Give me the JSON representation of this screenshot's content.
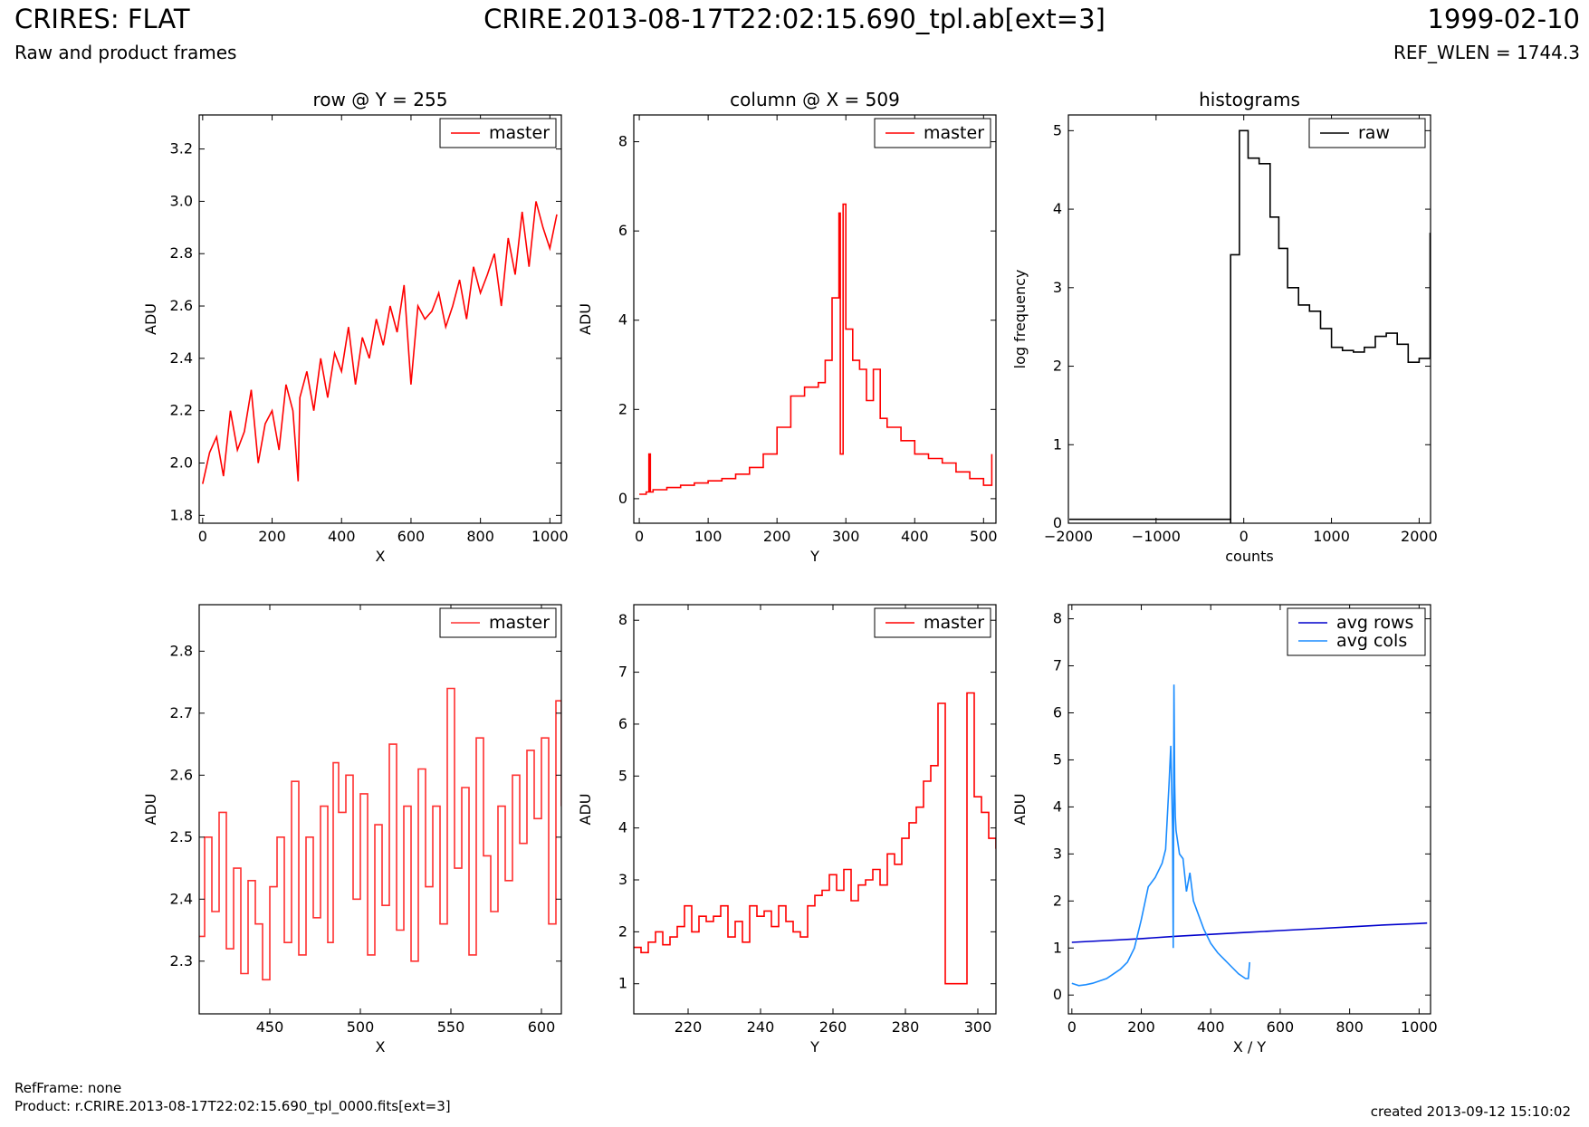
{
  "header": {
    "title": "CRIRES: FLAT",
    "subtitle": "Raw and product frames",
    "file": "CRIRE.2013-08-17T22:02:15.690_tpl.ab[ext=3]",
    "date": "1999-02-10",
    "ref_wlen": "REF_WLEN = 1744.3"
  },
  "footer": {
    "ref_frame": "RefFrame: none",
    "product": "Product: r.CRIRE.2013-08-17T22:02:15.690_tpl_0000.fits[ext=3]",
    "created": "created 2013-09-12 15:10:02"
  },
  "chart_data": [
    {
      "id": "row-full",
      "type": "line",
      "title": "row @ Y = 255",
      "xlabel": "X",
      "ylabel": "ADU",
      "xlim": [
        -10,
        1033
      ],
      "ylim": [
        1.77,
        3.33
      ],
      "xticks": [
        0,
        200,
        400,
        600,
        800,
        1000
      ],
      "yticks": [
        1.8,
        2.0,
        2.2,
        2.4,
        2.6,
        2.8,
        3.0,
        3.2
      ],
      "ytick_decimals": 1,
      "grid": false,
      "legend": "top-right",
      "series": [
        {
          "name": "master",
          "color": "#ff0000",
          "step": false,
          "x": [
            0,
            20,
            40,
            60,
            80,
            100,
            120,
            140,
            160,
            180,
            200,
            220,
            240,
            260,
            275,
            280,
            300,
            320,
            340,
            360,
            380,
            400,
            420,
            440,
            460,
            480,
            500,
            520,
            540,
            560,
            580,
            600,
            620,
            640,
            660,
            680,
            700,
            720,
            740,
            760,
            780,
            800,
            820,
            840,
            860,
            880,
            900,
            920,
            940,
            960,
            980,
            1000,
            1020
          ],
          "y": [
            1.92,
            2.04,
            2.1,
            1.95,
            2.2,
            2.05,
            2.12,
            2.28,
            2.0,
            2.15,
            2.2,
            2.05,
            2.3,
            2.2,
            1.93,
            2.25,
            2.35,
            2.2,
            2.4,
            2.25,
            2.42,
            2.35,
            2.52,
            2.3,
            2.48,
            2.4,
            2.55,
            2.45,
            2.6,
            2.5,
            2.68,
            2.3,
            2.6,
            2.55,
            2.58,
            2.65,
            2.52,
            2.6,
            2.7,
            2.55,
            2.75,
            2.65,
            2.72,
            2.8,
            2.6,
            2.86,
            2.72,
            2.96,
            2.75,
            3.0,
            2.9,
            2.82,
            2.95
          ]
        }
      ]
    },
    {
      "id": "col-full",
      "type": "line",
      "title": "column @ X = 509",
      "xlabel": "Y",
      "ylabel": "ADU",
      "xlim": [
        -8,
        518
      ],
      "ylim": [
        -0.55,
        8.6
      ],
      "xticks": [
        0,
        100,
        200,
        300,
        400,
        500
      ],
      "yticks": [
        0,
        2,
        4,
        6,
        8
      ],
      "ytick_decimals": 0,
      "grid": false,
      "legend": "top-right",
      "series": [
        {
          "name": "master",
          "color": "#ff0000",
          "step": true,
          "x": [
            0,
            10,
            14,
            16,
            20,
            40,
            60,
            80,
            100,
            120,
            140,
            160,
            180,
            200,
            220,
            240,
            260,
            270,
            280,
            290,
            292,
            296,
            300,
            310,
            320,
            330,
            340,
            350,
            360,
            380,
            400,
            420,
            440,
            460,
            480,
            500,
            508,
            512
          ],
          "y": [
            0.1,
            0.15,
            1.0,
            0.15,
            0.2,
            0.25,
            0.3,
            0.35,
            0.4,
            0.45,
            0.55,
            0.7,
            1.0,
            1.6,
            2.3,
            2.5,
            2.6,
            3.1,
            4.5,
            6.4,
            1.0,
            6.6,
            3.8,
            3.1,
            2.9,
            2.2,
            2.9,
            1.8,
            1.6,
            1.3,
            1.0,
            0.9,
            0.8,
            0.6,
            0.45,
            0.3,
            0.3,
            1.0
          ]
        }
      ]
    },
    {
      "id": "hist",
      "type": "line",
      "title": "histograms",
      "xlabel": "counts",
      "ylabel": "log frequency",
      "xlim": [
        -2000,
        2130
      ],
      "ylim": [
        0,
        5.2
      ],
      "xticks": [
        -2000,
        -1000,
        0,
        1000,
        2000
      ],
      "yticks": [
        0,
        1,
        2,
        3,
        4,
        5
      ],
      "ytick_decimals": 0,
      "grid": false,
      "legend": "top-right",
      "series": [
        {
          "name": "raw",
          "color": "#000000",
          "step": true,
          "x": [
            -1990,
            -150,
            -150,
            -50,
            50,
            175,
            300,
            400,
            500,
            625,
            750,
            875,
            1000,
            1125,
            1250,
            1375,
            1500,
            1625,
            1750,
            1875,
            2000,
            2125
          ],
          "y": [
            0.05,
            0,
            3.42,
            5.0,
            4.65,
            4.58,
            3.9,
            3.5,
            3.0,
            2.78,
            2.7,
            2.48,
            2.24,
            2.2,
            2.18,
            2.24,
            2.38,
            2.42,
            2.28,
            2.05,
            2.1,
            3.7
          ]
        }
      ]
    },
    {
      "id": "row-zoom",
      "type": "line",
      "title": "",
      "xlabel": "X",
      "ylabel": "ADU",
      "xlim": [
        411,
        611
      ],
      "ylim": [
        2.215,
        2.875
      ],
      "xticks": [
        450,
        500,
        550,
        600
      ],
      "yticks": [
        2.3,
        2.4,
        2.5,
        2.6,
        2.7,
        2.8
      ],
      "ytick_decimals": 1,
      "grid": false,
      "legend": "top-right",
      "series": [
        {
          "name": "master",
          "color": "#ff3030",
          "step": true,
          "x": [
            411,
            414,
            418,
            422,
            426,
            430,
            434,
            438,
            442,
            446,
            450,
            454,
            458,
            462,
            466,
            470,
            474,
            478,
            482,
            485,
            488,
            492,
            496,
            500,
            504,
            508,
            512,
            516,
            520,
            524,
            528,
            532,
            536,
            540,
            544,
            548,
            552,
            556,
            560,
            564,
            568,
            572,
            576,
            580,
            584,
            588,
            592,
            596,
            600,
            604,
            608,
            611
          ],
          "y": [
            2.34,
            2.5,
            2.38,
            2.54,
            2.32,
            2.45,
            2.28,
            2.43,
            2.36,
            2.27,
            2.42,
            2.5,
            2.33,
            2.59,
            2.31,
            2.5,
            2.37,
            2.55,
            2.33,
            2.62,
            2.54,
            2.6,
            2.4,
            2.57,
            2.31,
            2.52,
            2.39,
            2.65,
            2.35,
            2.55,
            2.3,
            2.61,
            2.42,
            2.55,
            2.36,
            2.74,
            2.45,
            2.58,
            2.31,
            2.66,
            2.47,
            2.38,
            2.55,
            2.43,
            2.6,
            2.49,
            2.64,
            2.53,
            2.66,
            2.36,
            2.72,
            2.55
          ]
        }
      ]
    },
    {
      "id": "col-zoom",
      "type": "line",
      "title": "",
      "xlabel": "Y",
      "ylabel": "ADU",
      "xlim": [
        205,
        305
      ],
      "ylim": [
        0.42,
        8.3
      ],
      "xticks": [
        220,
        240,
        260,
        280,
        300
      ],
      "yticks": [
        1,
        2,
        3,
        4,
        5,
        6,
        7,
        8
      ],
      "ytick_decimals": 0,
      "grid": false,
      "legend": "top-right",
      "series": [
        {
          "name": "master",
          "color": "#ff0000",
          "step": true,
          "x": [
            205,
            207,
            209,
            211,
            213,
            215,
            217,
            219,
            221,
            223,
            225,
            227,
            229,
            231,
            233,
            235,
            237,
            239,
            241,
            243,
            245,
            247,
            249,
            251,
            253,
            255,
            257,
            259,
            261,
            263,
            265,
            267,
            269,
            271,
            273,
            275,
            277,
            279,
            281,
            283,
            285,
            287,
            289,
            290,
            291,
            296,
            297,
            299,
            301,
            303,
            305
          ],
          "y": [
            1.7,
            1.6,
            1.8,
            2.0,
            1.75,
            1.9,
            2.1,
            2.5,
            2.0,
            2.3,
            2.2,
            2.3,
            2.5,
            1.9,
            2.2,
            1.8,
            2.5,
            2.3,
            2.4,
            2.1,
            2.5,
            2.2,
            2.0,
            1.9,
            2.5,
            2.7,
            2.8,
            3.1,
            2.8,
            3.2,
            2.6,
            2.9,
            3.0,
            3.2,
            2.9,
            3.5,
            3.3,
            3.8,
            4.1,
            4.4,
            4.9,
            5.2,
            6.4,
            6.4,
            1.0,
            1.0,
            6.6,
            4.6,
            4.3,
            3.8,
            3.6
          ]
        }
      ]
    },
    {
      "id": "avg",
      "type": "line",
      "title": "",
      "xlabel": "X / Y",
      "ylabel": "ADU",
      "xlim": [
        -10,
        1033
      ],
      "ylim": [
        -0.4,
        8.3
      ],
      "xticks": [
        0,
        200,
        400,
        600,
        800,
        1000
      ],
      "yticks": [
        0,
        1,
        2,
        3,
        4,
        5,
        6,
        7,
        8
      ],
      "ytick_decimals": 0,
      "grid": false,
      "legend": "top-right",
      "series": [
        {
          "name": "avg rows",
          "color": "#0000cc",
          "step": false,
          "x": [
            0,
            100,
            200,
            300,
            400,
            500,
            600,
            700,
            800,
            900,
            1000,
            1023
          ],
          "y": [
            1.12,
            1.16,
            1.2,
            1.25,
            1.29,
            1.33,
            1.37,
            1.41,
            1.45,
            1.49,
            1.52,
            1.53
          ]
        },
        {
          "name": "avg cols",
          "color": "#1a8cff",
          "step": false,
          "x": [
            0,
            20,
            40,
            60,
            80,
            100,
            120,
            140,
            160,
            180,
            200,
            220,
            240,
            260,
            270,
            280,
            285,
            290,
            292,
            294,
            296,
            298,
            300,
            310,
            320,
            330,
            340,
            350,
            360,
            380,
            400,
            420,
            440,
            460,
            480,
            500,
            508,
            512
          ],
          "y": [
            0.25,
            0.2,
            0.22,
            0.25,
            0.3,
            0.35,
            0.45,
            0.55,
            0.7,
            1.0,
            1.6,
            2.3,
            2.5,
            2.8,
            3.1,
            4.5,
            5.3,
            3.5,
            1.0,
            6.6,
            4.5,
            3.8,
            3.5,
            3.0,
            2.9,
            2.2,
            2.6,
            2.0,
            1.8,
            1.4,
            1.1,
            0.9,
            0.75,
            0.6,
            0.45,
            0.35,
            0.35,
            0.7
          ]
        }
      ]
    }
  ]
}
